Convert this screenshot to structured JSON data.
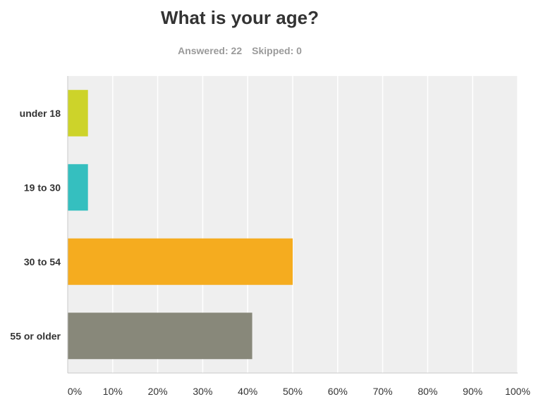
{
  "survey": {
    "question": "What is your age?",
    "answered_label": "Answered: 22",
    "skipped_label": "Skipped: 0"
  },
  "chart_data": {
    "type": "bar",
    "orientation": "horizontal",
    "title": "What is your age?",
    "categories": [
      "under 18",
      "19 to 30",
      "30 to 54",
      "55 or older"
    ],
    "values": [
      4.5,
      4.5,
      50,
      41
    ],
    "colors": [
      "#cdd32a",
      "#35bfbf",
      "#f5ac1f",
      "#88887a"
    ],
    "xlim": [
      0,
      100
    ],
    "x_ticks": [
      "0%",
      "10%",
      "20%",
      "30%",
      "40%",
      "50%",
      "60%",
      "70%",
      "80%",
      "90%",
      "100%"
    ],
    "unit": "%",
    "grid": true,
    "legend": "none",
    "plot_background": "#efefef"
  }
}
